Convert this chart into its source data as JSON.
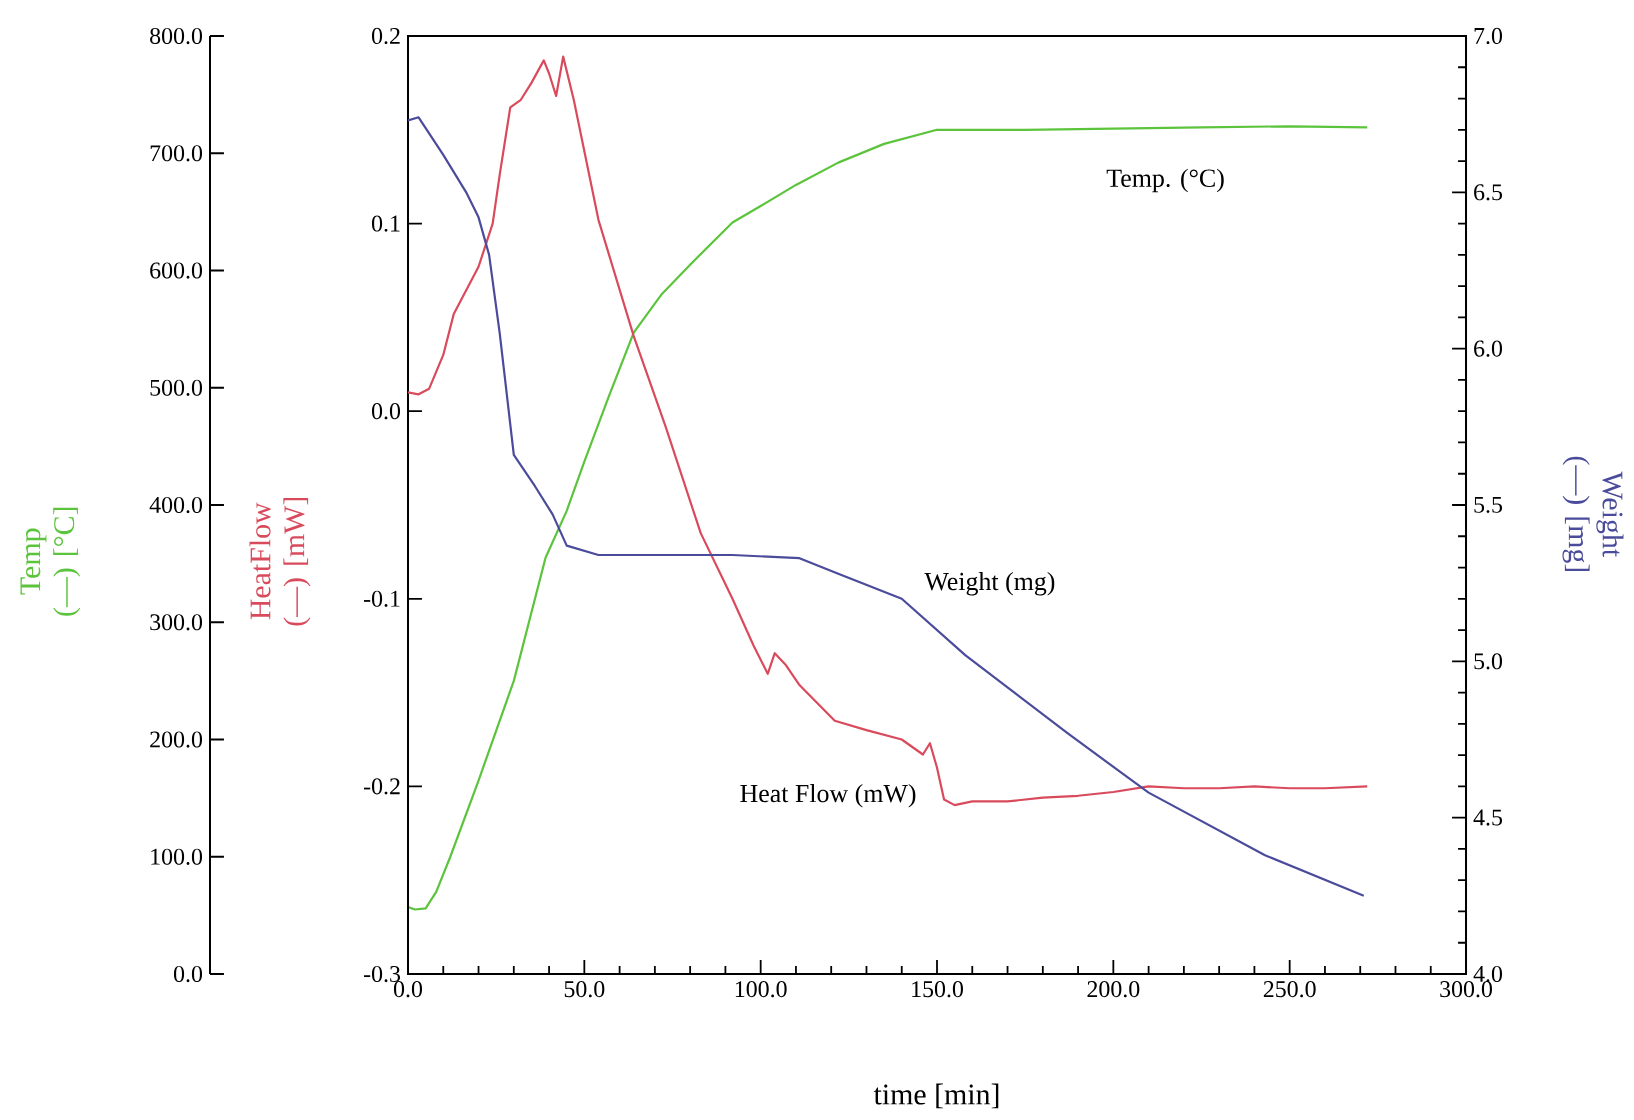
{
  "chart_data": {
    "type": "line",
    "xlabel": "time [min]",
    "ylabel": "HeatFlow (—) [mW]",
    "y2label": "Weight (—) [mg]",
    "y3label": "Temp (—) [°C]",
    "xlim": [
      0,
      300
    ],
    "xticks": [
      {
        "value": 0,
        "label": "0.0"
      },
      {
        "value": 50,
        "label": "50.0"
      },
      {
        "value": 100,
        "label": "100.0"
      },
      {
        "value": 150,
        "label": "150.0"
      },
      {
        "value": 200,
        "label": "200.0"
      },
      {
        "value": 250,
        "label": "250.0"
      },
      {
        "value": 300,
        "label": "300.0"
      }
    ],
    "ylim": [
      -0.3,
      0.2
    ],
    "yticks": [
      -0.3,
      -0.2,
      -0.1,
      {
        "value": 0,
        "label": "0.0"
      },
      0.1,
      0.2
    ],
    "y2lim": [
      4,
      7
    ],
    "y2ticks": [
      {
        "value": 4,
        "label": "4.0"
      },
      4.5,
      {
        "value": 5,
        "label": "5.0"
      },
      5.5,
      {
        "value": 6,
        "label": "6.0"
      },
      6.5,
      {
        "value": 7,
        "label": "7.0"
      }
    ],
    "y3lim": [
      0,
      800
    ],
    "y3ticks": [
      {
        "value": 0,
        "label": "0.0"
      },
      {
        "value": 100,
        "label": "100.0"
      },
      {
        "value": 200,
        "label": "200.0"
      },
      {
        "value": 300,
        "label": "300.0"
      },
      {
        "value": 400,
        "label": "400.0"
      },
      {
        "value": 500,
        "label": "500.0"
      },
      {
        "value": 600,
        "label": "600.0"
      },
      {
        "value": 700,
        "label": "700.0"
      },
      {
        "value": 800,
        "label": "800.0"
      }
    ],
    "series": [
      {
        "name": "Temp. (°C)",
        "color": "#5cc43c",
        "axis": "y3",
        "x": [
          0,
          2,
          5,
          8,
          12,
          20,
          30,
          39,
          45,
          50,
          57,
          64,
          72,
          80,
          92,
          100,
          110,
          122,
          135,
          150,
          175,
          200,
          225,
          250,
          272
        ],
        "values": [
          57,
          55,
          56,
          70,
          100,
          165,
          250,
          355,
          395,
          437,
          493,
          547,
          580,
          605,
          641,
          655,
          673,
          692,
          708,
          720,
          720,
          721,
          722,
          723,
          722
        ]
      },
      {
        "name": "Heat Flow (mW)",
        "color": "#d94a5c",
        "axis": "y",
        "x": [
          0,
          3,
          6,
          10,
          13,
          20,
          24,
          26,
          29,
          32,
          35,
          38.5,
          40,
          42,
          44,
          47,
          54,
          64,
          73,
          83,
          92,
          98,
          102,
          104,
          107,
          111,
          121,
          130,
          140,
          146,
          148,
          150,
          152,
          155,
          160,
          170,
          180,
          190,
          200,
          210,
          220,
          230,
          240,
          250,
          260,
          272
        ],
        "values": [
          0.01,
          0.009,
          0.012,
          0.03,
          0.052,
          0.077,
          0.1,
          0.126,
          0.162,
          0.166,
          0.175,
          0.187,
          0.18,
          0.168,
          0.189,
          0.166,
          0.102,
          0.04,
          -0.008,
          -0.065,
          -0.1,
          -0.125,
          -0.14,
          -0.129,
          -0.135,
          -0.146,
          -0.165,
          -0.17,
          -0.175,
          -0.183,
          -0.177,
          -0.19,
          -0.207,
          -0.21,
          -0.208,
          -0.208,
          -0.206,
          -0.205,
          -0.203,
          -0.2,
          -0.201,
          -0.201,
          -0.2,
          -0.201,
          -0.201,
          -0.2
        ]
      },
      {
        "name": "Weight (mg)",
        "color": "#4b4b9c",
        "axis": "y2",
        "x": [
          0,
          3,
          10,
          16.5,
          20,
          23,
          26,
          30,
          36,
          41,
          45,
          54,
          92,
          111,
          122,
          140,
          158,
          187,
          210,
          243,
          271
        ],
        "values": [
          6.73,
          6.74,
          6.62,
          6.5,
          6.42,
          6.3,
          6.05,
          5.66,
          5.56,
          5.47,
          5.37,
          5.34,
          5.34,
          5.33,
          5.28,
          5.2,
          5.02,
          4.77,
          4.58,
          4.38,
          4.25
        ]
      }
    ]
  }
}
